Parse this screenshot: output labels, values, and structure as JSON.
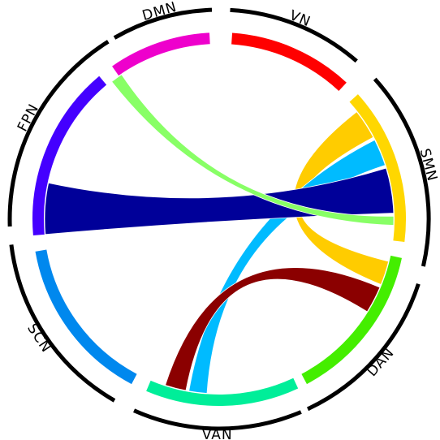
{
  "nodes": [
    {
      "id": "VN",
      "label": "VN",
      "color": "#ff0000"
    },
    {
      "id": "SMN",
      "label": "SMN",
      "color": "#ffd700"
    },
    {
      "id": "DAN",
      "label": "DAN",
      "color": "#44ee00"
    },
    {
      "id": "VAN",
      "label": "VAN",
      "color": "#00ee99"
    },
    {
      "id": "SCN",
      "label": "SCN",
      "color": "#0088ee"
    },
    {
      "id": "FPN",
      "label": "FPN",
      "color": "#4400ff"
    },
    {
      "id": "DMN",
      "label": "DMN",
      "color": "#ee00cc"
    }
  ],
  "links": [
    {
      "source": "SMN",
      "target": "DAN",
      "color": "#ffcc00"
    },
    {
      "source": "SMN",
      "target": "VAN",
      "color": "#00bbff"
    },
    {
      "source": "DAN",
      "target": "VAN",
      "color": "#8b0000"
    },
    {
      "source": "SMN",
      "target": "FPN",
      "color": "#000099"
    },
    {
      "source": "SMN",
      "target": "DMN",
      "color": "#88ff66"
    }
  ]
}
